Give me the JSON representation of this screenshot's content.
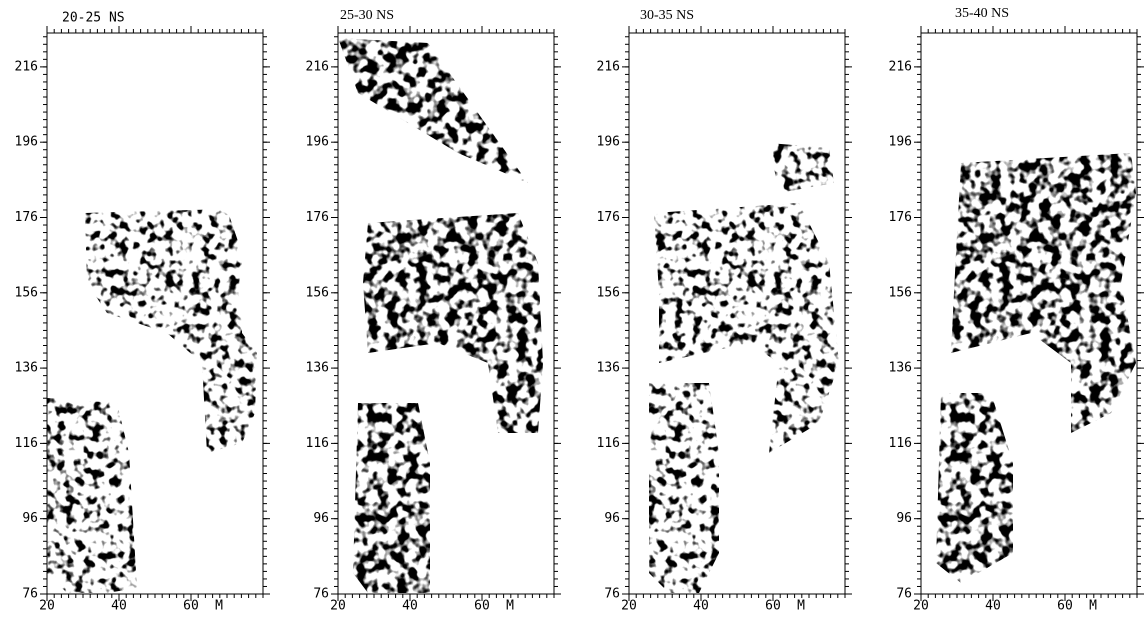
{
  "panels": [
    {
      "title": "20-25 NS"
    },
    {
      "title": "25-30 NS"
    },
    {
      "title": "30-35 NS"
    },
    {
      "title": "35-40 NS"
    }
  ],
  "y_axis": {
    "ylim": [
      76,
      225
    ],
    "yticks": [
      76,
      96,
      116,
      136,
      156,
      176,
      196,
      216
    ]
  },
  "x_axis": {
    "xlim": [
      20,
      80
    ],
    "xticks": [
      20,
      40,
      60
    ],
    "unit": "M"
  }
}
